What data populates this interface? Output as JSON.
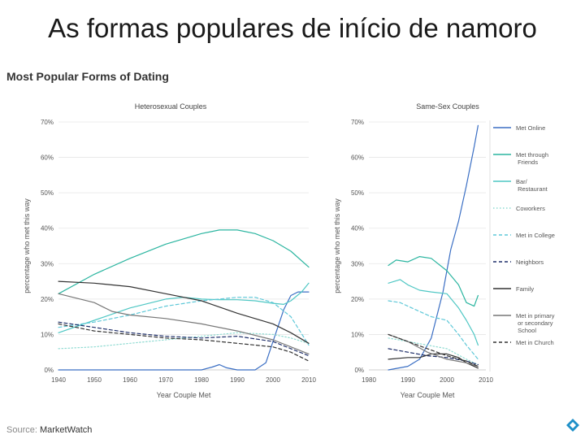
{
  "slide": {
    "title": "As formas populares de início de namoro",
    "figure_title": "Most Popular Forms of Dating",
    "source_label": "Source:",
    "source_value": "MarketWatch"
  },
  "chart_data": [
    {
      "type": "line",
      "title": "Heterosexual Couples",
      "xlabel": "Year Couple Met",
      "ylabel": "percentage who met this way",
      "xlim": [
        1940,
        2010
      ],
      "ylim": [
        0,
        70
      ],
      "xticks": [
        1940,
        1950,
        1960,
        1970,
        1980,
        1990,
        2000,
        2010
      ],
      "xtick_labels": [
        "1940",
        "1950",
        "1960",
        "1970",
        "1980",
        "1990",
        "2000",
        "2010"
      ],
      "yticks": [
        0,
        10,
        20,
        30,
        40,
        50,
        60,
        70
      ],
      "ytick_labels": [
        "0%",
        "10%",
        "20%",
        "30%",
        "40%",
        "50%",
        "60%",
        "70%"
      ],
      "grid": true,
      "series": [
        {
          "name": "Met Online",
          "color": "#3b6fc4",
          "dash": "solid",
          "x": [
            1940,
            1980,
            1983,
            1985,
            1987,
            1990,
            1995,
            1998,
            2000,
            2003,
            2005,
            2007,
            2010
          ],
          "y": [
            0,
            0,
            0.8,
            1.5,
            0.6,
            0,
            0,
            2,
            8,
            17,
            21,
            22,
            22
          ]
        },
        {
          "name": "Met through Friends",
          "color": "#2bb5a0",
          "dash": "solid",
          "x": [
            1940,
            1950,
            1960,
            1970,
            1980,
            1985,
            1990,
            1995,
            2000,
            2005,
            2010
          ],
          "y": [
            21.5,
            27,
            31.5,
            35.5,
            38.5,
            39.5,
            39.5,
            38.5,
            36.5,
            33.5,
            29
          ]
        },
        {
          "name": "Bar/ Restaurant",
          "color": "#4fc7c4",
          "dash": "solid",
          "x": [
            1940,
            1950,
            1960,
            1970,
            1975,
            1980,
            1985,
            1990,
            1995,
            2000,
            2003,
            2005,
            2008,
            2010
          ],
          "y": [
            10.5,
            14,
            17.5,
            20,
            20.5,
            20,
            19.8,
            19.8,
            19.5,
            18.8,
            18.5,
            19.5,
            22,
            24.5
          ]
        },
        {
          "name": "Coworkers",
          "color": "#8fdbd2",
          "dash": "dotted",
          "x": [
            1940,
            1950,
            1960,
            1970,
            1980,
            1990,
            2000,
            2005,
            2010
          ],
          "y": [
            6,
            6.5,
            7.5,
            8.5,
            9.5,
            10.5,
            10,
            9,
            7.5
          ]
        },
        {
          "name": "Met in College",
          "color": "#5ec8d8",
          "dash": "dashed",
          "x": [
            1940,
            1950,
            1960,
            1970,
            1980,
            1990,
            1995,
            2000,
            2005,
            2010
          ],
          "y": [
            12,
            13.5,
            15.5,
            18,
            19.5,
            20.5,
            20.5,
            19,
            15,
            7
          ]
        },
        {
          "name": "Neighbors",
          "color": "#1f2f6a",
          "dash": "dashed",
          "x": [
            1940,
            1950,
            1960,
            1970,
            1980,
            1990,
            2000,
            2005,
            2010
          ],
          "y": [
            13.5,
            12,
            10.5,
            9.5,
            9,
            9.5,
            8,
            6,
            4
          ]
        },
        {
          "name": "Family",
          "color": "#333333",
          "dash": "solid",
          "x": [
            1940,
            1950,
            1960,
            1970,
            1980,
            1990,
            2000,
            2005,
            2010
          ],
          "y": [
            25,
            24.5,
            23.5,
            21.5,
            19.5,
            16,
            13,
            10.5,
            7.5
          ]
        },
        {
          "name": "Met in primary or secondary School",
          "color": "#777777",
          "dash": "solid",
          "x": [
            1940,
            1950,
            1955,
            1960,
            1970,
            1980,
            1990,
            2000,
            2005,
            2010
          ],
          "y": [
            21.5,
            19,
            16.5,
            15.5,
            14.5,
            13,
            11,
            8.5,
            6.5,
            4.5
          ]
        },
        {
          "name": "Met in Church",
          "color": "#333333",
          "dash": "dashed",
          "x": [
            1940,
            1950,
            1960,
            1970,
            1980,
            1990,
            2000,
            2005,
            2010
          ],
          "y": [
            13,
            11,
            10,
            9,
            8.5,
            7.5,
            6.5,
            5,
            2.5
          ]
        }
      ]
    },
    {
      "type": "line",
      "title": "Same-Sex Couples",
      "xlabel": "Year Couple Met",
      "ylabel": "percentage who met this way",
      "xlim": [
        1980,
        2010
      ],
      "ylim": [
        0,
        70
      ],
      "xticks": [
        1980,
        1990,
        2000,
        2010
      ],
      "xtick_labels": [
        "1980",
        "1990",
        "2000",
        "2010"
      ],
      "yticks": [
        0,
        10,
        20,
        30,
        40,
        50,
        60,
        70
      ],
      "ytick_labels": [
        "0%",
        "10%",
        "20%",
        "30%",
        "40%",
        "50%",
        "60%",
        "70%"
      ],
      "grid": true,
      "series": [
        {
          "name": "Met Online",
          "color": "#3b6fc4",
          "dash": "solid",
          "x": [
            1985,
            1990,
            1993,
            1996,
            1999,
            2001,
            2003,
            2005,
            2007,
            2008
          ],
          "y": [
            0,
            1,
            3,
            9,
            22,
            34,
            42,
            52,
            63,
            69
          ]
        },
        {
          "name": "Met through Friends",
          "color": "#2bb5a0",
          "dash": "solid",
          "x": [
            1985,
            1987,
            1990,
            1993,
            1996,
            2000,
            2003,
            2005,
            2007,
            2008
          ],
          "y": [
            29.5,
            31,
            30.5,
            32,
            31.5,
            28,
            24,
            19,
            18,
            21
          ]
        },
        {
          "name": "Bar/ Restaurant",
          "color": "#4fc7c4",
          "dash": "solid",
          "x": [
            1985,
            1988,
            1990,
            1993,
            1996,
            2000,
            2003,
            2005,
            2007,
            2008
          ],
          "y": [
            24.5,
            25.5,
            24,
            22.5,
            22,
            21.5,
            17.5,
            14,
            10,
            7
          ]
        },
        {
          "name": "Coworkers",
          "color": "#8fdbd2",
          "dash": "dotted",
          "x": [
            1985,
            1990,
            1995,
            2000,
            2005,
            2008
          ],
          "y": [
            9,
            8,
            7,
            6,
            3,
            1.5
          ]
        },
        {
          "name": "Met in College",
          "color": "#5ec8d8",
          "dash": "dashed",
          "x": [
            1985,
            1988,
            1990,
            1993,
            1996,
            2000,
            2003,
            2005,
            2008
          ],
          "y": [
            19.5,
            19,
            18,
            16.5,
            15,
            14,
            10,
            7,
            3
          ]
        },
        {
          "name": "Neighbors",
          "color": "#1f2f6a",
          "dash": "dashed",
          "x": [
            1985,
            1990,
            1995,
            2000,
            2005,
            2008
          ],
          "y": [
            6,
            5,
            4,
            3.5,
            2.5,
            1.5
          ]
        },
        {
          "name": "Family",
          "color": "#333333",
          "dash": "solid",
          "x": [
            1985,
            1990,
            1993,
            1996,
            2000,
            2003,
            2005,
            2008
          ],
          "y": [
            3,
            3.5,
            3.5,
            4.5,
            4.5,
            3.5,
            2,
            0.5
          ]
        },
        {
          "name": "Met in primary or secondary School",
          "color": "#777777",
          "dash": "solid",
          "x": [
            1985,
            1990,
            1995,
            2000,
            2005,
            2008
          ],
          "y": [
            10,
            8,
            5,
            3,
            2,
            1
          ]
        },
        {
          "name": "Met in Church",
          "color": "#333333",
          "dash": "dashed",
          "x": [
            1985,
            1990,
            1995,
            2000,
            2005,
            2008
          ],
          "y": [
            10,
            8,
            6,
            4,
            2.5,
            1
          ]
        }
      ]
    }
  ]
}
